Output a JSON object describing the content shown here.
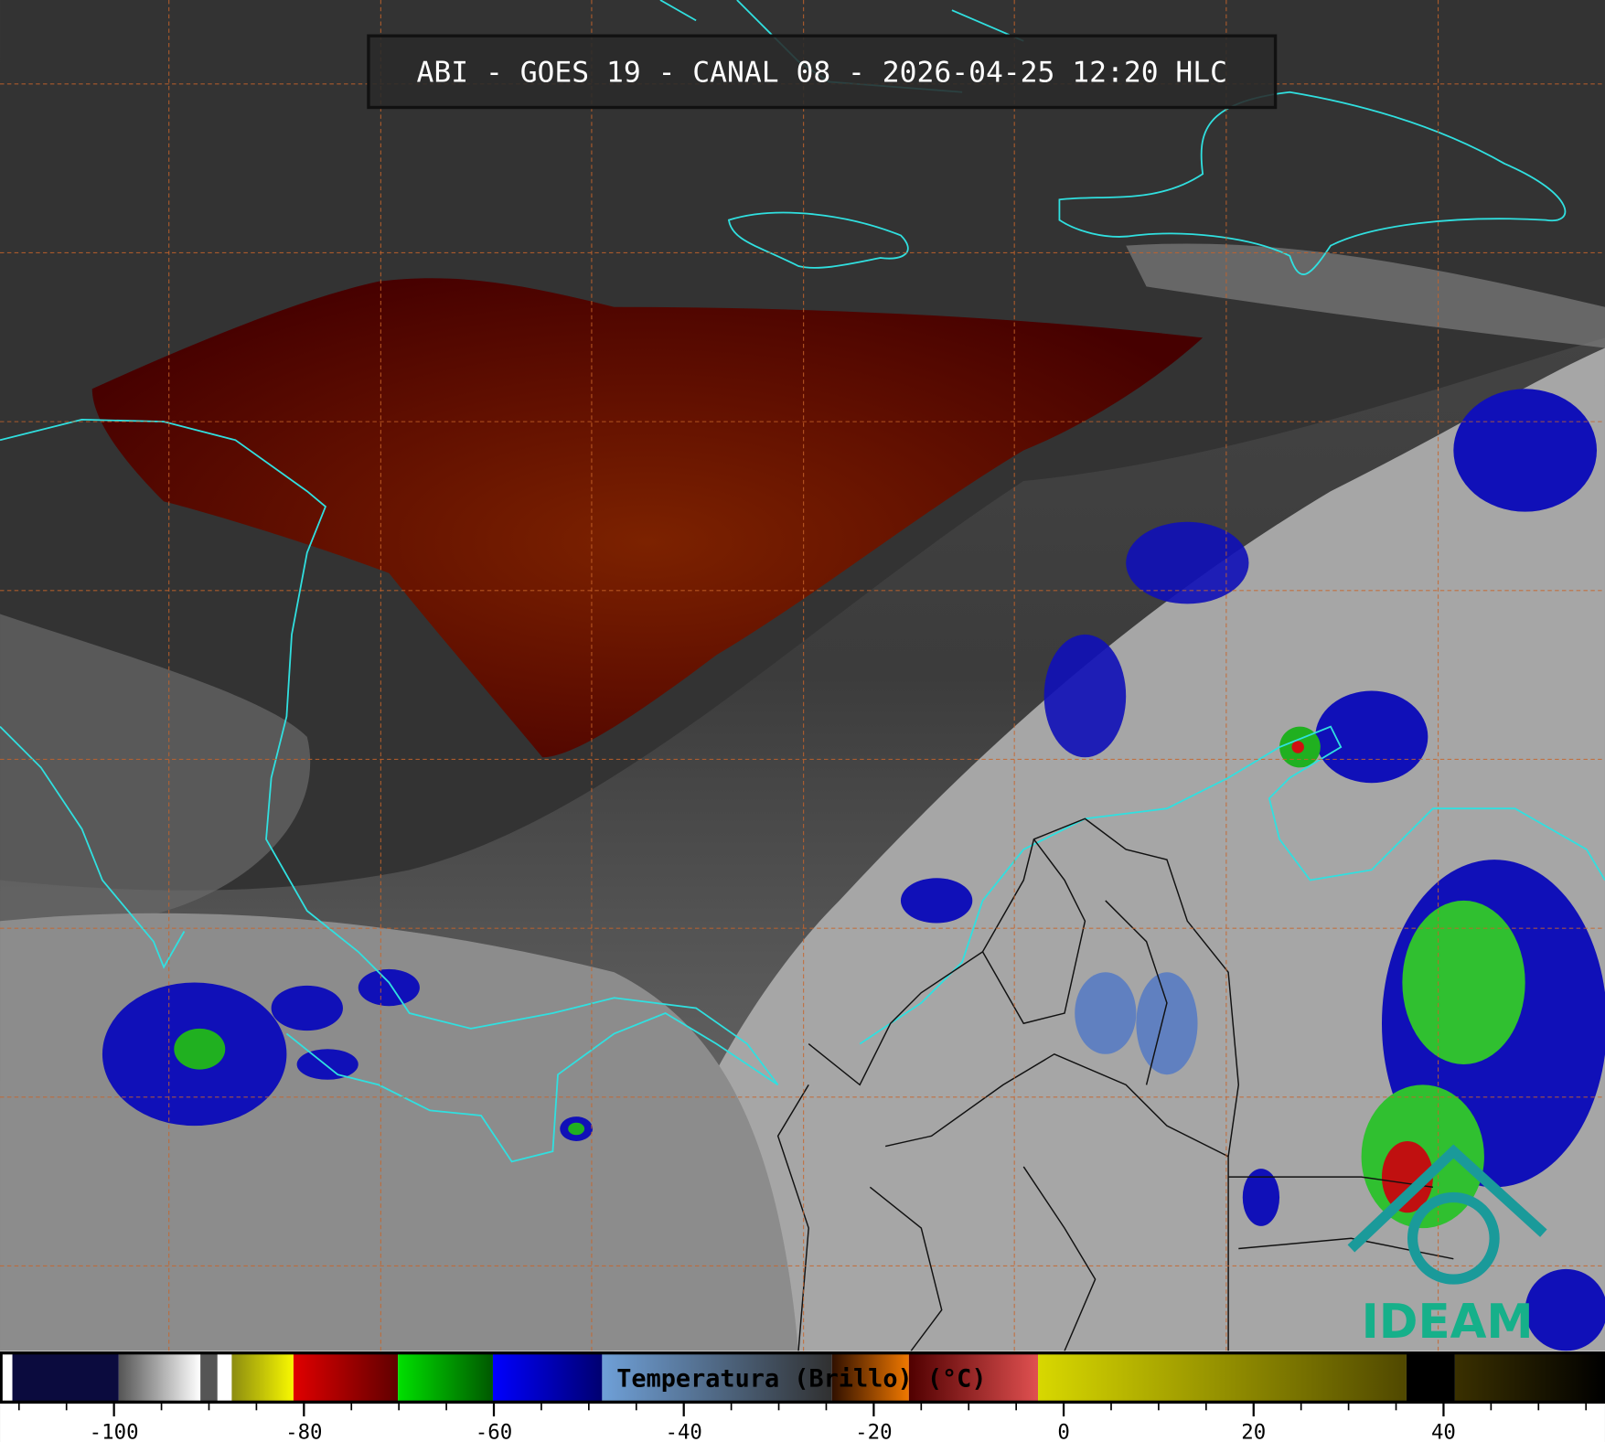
{
  "title": "ABI - GOES 19 - CANAL 08 - 2026-04-25 12:20 HLC",
  "colorbar": {
    "label": "Temperatura (Brillo) (°C)",
    "lim": [
      -112,
      57
    ],
    "ticks": [
      -100,
      -80,
      -60,
      -40,
      -20,
      0,
      20,
      40
    ],
    "minor_step": 5,
    "segments": [
      {
        "from": -112,
        "to": -110.7,
        "colors": [
          "#ffffff",
          "#ffffff"
        ]
      },
      {
        "from": -110.7,
        "to": -99.5,
        "colors": [
          "#0b0b3e",
          "#0b0b3e"
        ]
      },
      {
        "from": -99.5,
        "to": -90.9,
        "colors": [
          "#555555",
          "#ffffff"
        ]
      },
      {
        "from": -90.9,
        "to": -89.1,
        "colors": [
          "#555555",
          "#555555"
        ]
      },
      {
        "from": -89.1,
        "to": -87.6,
        "colors": [
          "#ffffff",
          "#ffffff"
        ]
      },
      {
        "from": -87.6,
        "to": -81.1,
        "colors": [
          "#8c8c10",
          "#f8f800"
        ]
      },
      {
        "from": -81.1,
        "to": -70.1,
        "colors": [
          "#e00000",
          "#600000"
        ]
      },
      {
        "from": -70.1,
        "to": -60.1,
        "colors": [
          "#00e000",
          "#005800"
        ]
      },
      {
        "from": -60.1,
        "to": -48.6,
        "colors": [
          "#0000ff",
          "#000070"
        ]
      },
      {
        "from": -48.6,
        "to": -24.4,
        "colors": [
          "#6fa0d8",
          "#303030"
        ]
      },
      {
        "from": -24.4,
        "to": -16.3,
        "colors": [
          "#301000",
          "#f07800"
        ]
      },
      {
        "from": -16.3,
        "to": -2.7,
        "colors": [
          "#500000",
          "#e05050"
        ]
      },
      {
        "from": -2.7,
        "to": 36.1,
        "colors": [
          "#d8d800",
          "#504800"
        ]
      },
      {
        "from": 36.1,
        "to": 41.2,
        "colors": [
          "#000000",
          "#000000"
        ]
      },
      {
        "from": 41.2,
        "to": 57,
        "colors": [
          "#3a3000",
          "#000000"
        ]
      }
    ]
  },
  "logo": "IDEAM"
}
